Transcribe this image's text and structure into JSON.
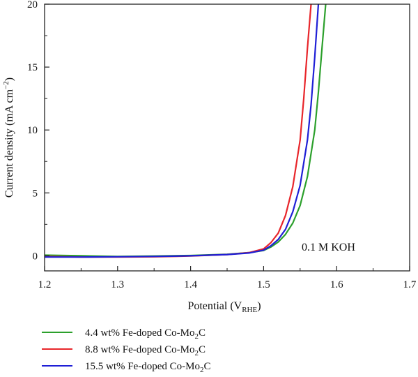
{
  "chart_data": {
    "type": "line",
    "xlabel": "Potential (V",
    "xlabel_sub": "RHE",
    "xlabel_end": ")",
    "ylabel": "Current density (mA cm",
    "ylabel_sup": "−2",
    "ylabel_end": ")",
    "xlim": [
      1.2,
      1.7
    ],
    "ylim": [
      -1.2,
      20
    ],
    "xticks": [
      1.2,
      1.3,
      1.4,
      1.5,
      1.6,
      1.7
    ],
    "xtick_labels": [
      "1.2",
      "1.3",
      "1.4",
      "1.5",
      "1.6",
      "1.7"
    ],
    "yticks": [
      0,
      5,
      10,
      15,
      20
    ],
    "ytick_labels": [
      "0",
      "5",
      "10",
      "15",
      "20"
    ],
    "annotation": "0.1 M KOH",
    "grid": false,
    "legend_position": "below",
    "series": [
      {
        "name_pre": "4.4 wt% Fe-doped Co-Mo",
        "name_sub": "2",
        "name_post": "C",
        "color": "#2ca02c",
        "x": [
          1.2,
          1.25,
          1.3,
          1.35,
          1.4,
          1.45,
          1.48,
          1.5,
          1.51,
          1.52,
          1.53,
          1.54,
          1.55,
          1.56,
          1.57,
          1.575,
          1.58,
          1.585
        ],
        "y": [
          0.05,
          0.0,
          -0.05,
          -0.02,
          0.02,
          0.12,
          0.25,
          0.42,
          0.7,
          1.1,
          1.7,
          2.6,
          4.0,
          6.3,
          10.0,
          13.0,
          16.5,
          20.0
        ]
      },
      {
        "name_pre": "8.8 wt% Fe-doped Co-Mo",
        "name_sub": "2",
        "name_post": "C",
        "color": "#e8262b",
        "x": [
          1.2,
          1.25,
          1.3,
          1.35,
          1.4,
          1.45,
          1.48,
          1.5,
          1.51,
          1.52,
          1.53,
          1.54,
          1.55,
          1.555,
          1.56,
          1.565
        ],
        "y": [
          -0.05,
          -0.1,
          -0.1,
          -0.08,
          -0.02,
          0.1,
          0.25,
          0.55,
          1.05,
          1.8,
          3.2,
          5.5,
          9.2,
          12.5,
          16.5,
          20.0
        ]
      },
      {
        "name_pre": "15.5 wt% Fe-doped Co-Mo",
        "name_sub": "2",
        "name_post": "C",
        "color": "#1f1fd6",
        "x": [
          1.2,
          1.25,
          1.3,
          1.35,
          1.4,
          1.45,
          1.48,
          1.5,
          1.51,
          1.52,
          1.53,
          1.54,
          1.55,
          1.56,
          1.565,
          1.57,
          1.575
        ],
        "y": [
          -0.1,
          -0.1,
          -0.08,
          -0.05,
          0.0,
          0.1,
          0.22,
          0.45,
          0.8,
          1.3,
          2.1,
          3.5,
          5.6,
          9.2,
          12.0,
          15.8,
          20.0
        ]
      }
    ]
  }
}
